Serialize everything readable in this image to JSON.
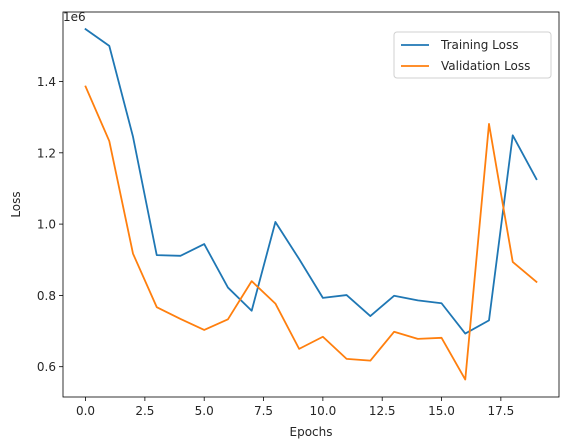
{
  "chart_data": {
    "type": "line",
    "title": "",
    "xlabel": "Epochs",
    "ylabel": "Loss",
    "y_offset_label": "1e6",
    "xlim": [
      -0.95,
      19.95
    ],
    "ylim": [
      515000,
      1595000
    ],
    "xticks": [
      0,
      2.5,
      5,
      7.5,
      10,
      12.5,
      15,
      17.5
    ],
    "xtick_labels": [
      "0.0",
      "2.5",
      "5.0",
      "7.5",
      "10.0",
      "12.5",
      "15.0",
      "17.5"
    ],
    "yticks": [
      600000,
      800000,
      1000000,
      1200000,
      1400000
    ],
    "ytick_labels": [
      "0.6",
      "0.8",
      "1.0",
      "1.2",
      "1.4"
    ],
    "grid": false,
    "legend_position": "top-right",
    "x": [
      0,
      1,
      2,
      3,
      4,
      5,
      6,
      7,
      8,
      9,
      10,
      11,
      12,
      13,
      14,
      15,
      16,
      17,
      18,
      19
    ],
    "series": [
      {
        "name": "Training Loss",
        "color": "#1f77b4",
        "values": [
          1547000,
          1500000,
          1245000,
          913000,
          911000,
          944000,
          822000,
          757000,
          1006000,
          902000,
          793000,
          801000,
          742000,
          799000,
          786000,
          778000,
          693000,
          730000,
          1249000,
          1126000
        ]
      },
      {
        "name": "Validation Loss",
        "color": "#ff7f0e",
        "values": [
          1386000,
          1233000,
          917000,
          767000,
          734000,
          703000,
          733000,
          840000,
          777000,
          650000,
          684000,
          622000,
          617000,
          698000,
          678000,
          681000,
          564000,
          1281000,
          894000,
          838000
        ]
      }
    ]
  }
}
